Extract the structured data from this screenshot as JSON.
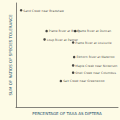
{
  "chart_data": {
    "type": "scatter",
    "x_label": "PERCENTAGE OF TAXA AS DIPTERA",
    "y_label": "SUM OF RATIOS OF SPECIES TOLERANCE",
    "points": [
      {
        "label": "Sand Creek near Bradshaw",
        "x": 5,
        "y": 93
      },
      {
        "label": "Platte River at Brady",
        "x": 30,
        "y": 73
      },
      {
        "label": "Platte River at Duncan",
        "x": 58,
        "y": 73
      },
      {
        "label": "Loup River at Palmer",
        "x": 28,
        "y": 65
      },
      {
        "label": "Platte River at Louisville",
        "x": 56,
        "y": 62
      },
      {
        "label": "Elkhorn River at Waterloo",
        "x": 57,
        "y": 48
      },
      {
        "label": "Maple Creek near Nickerson",
        "x": 56,
        "y": 40
      },
      {
        "label": "Shell Creek near Columbus",
        "x": 56,
        "y": 33
      },
      {
        "label": "Salt Creek near Greenwood",
        "x": 44,
        "y": 25
      }
    ],
    "color": "#1a1a1a",
    "xlim": [
      0,
      100
    ],
    "ylim": [
      0,
      100
    ],
    "tick_labels": false,
    "grid": false
  }
}
